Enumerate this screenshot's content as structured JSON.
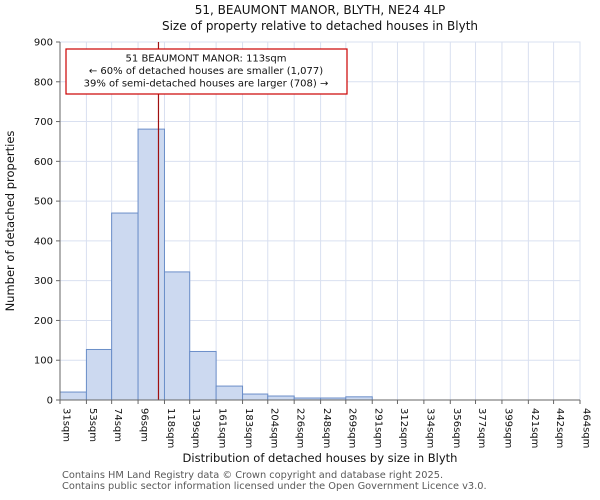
{
  "title": "51, BEAUMONT MANOR, BLYTH, NE24 4LP",
  "subtitle": "Size of property relative to detached houses in Blyth",
  "annotation": {
    "line1": "51 BEAUMONT MANOR: 113sqm",
    "line2": "← 60% of detached houses are smaller (1,077)",
    "line3": "39% of semi-detached houses are larger (708) →"
  },
  "footer": {
    "line1": "Contains HM Land Registry data © Crown copyright and database right 2025.",
    "line2": "Contains public sector information licensed under the Open Government Licence v3.0."
  },
  "chart_data": {
    "type": "bar",
    "title": "51, BEAUMONT MANOR, BLYTH, NE24 4LP",
    "subtitle": "Size of property relative to detached houses in Blyth",
    "xlabel": "Distribution of detached houses by size in Blyth",
    "ylabel": "Number of detached properties",
    "bin_edges": [
      31,
      53,
      74,
      96,
      118,
      139,
      161,
      183,
      204,
      226,
      248,
      269,
      291,
      312,
      334,
      356,
      377,
      399,
      421,
      442,
      464
    ],
    "x_tick_labels": [
      "31sqm",
      "53sqm",
      "74sqm",
      "96sqm",
      "118sqm",
      "139sqm",
      "161sqm",
      "183sqm",
      "204sqm",
      "226sqm",
      "248sqm",
      "269sqm",
      "291sqm",
      "312sqm",
      "334sqm",
      "356sqm",
      "377sqm",
      "399sqm",
      "421sqm",
      "442sqm",
      "464sqm"
    ],
    "values": [
      20,
      127,
      470,
      681,
      322,
      122,
      35,
      15,
      10,
      5,
      5,
      8,
      0,
      0,
      0,
      0,
      0,
      0,
      0,
      0
    ],
    "ylim": [
      0,
      900
    ],
    "y_ticks": [
      0,
      100,
      200,
      300,
      400,
      500,
      600,
      700,
      800,
      900
    ],
    "grid": true,
    "legend": "none",
    "marker_value": 113,
    "colors": {
      "bar_fill": "#ccd9f0",
      "bar_edge": "#6b8ec8",
      "marker_line": "#a01010",
      "grid": "#d9e0f0",
      "spine": "#666666",
      "annotation_border": "#cc0000",
      "annotation_bg": "#ffffff"
    }
  }
}
